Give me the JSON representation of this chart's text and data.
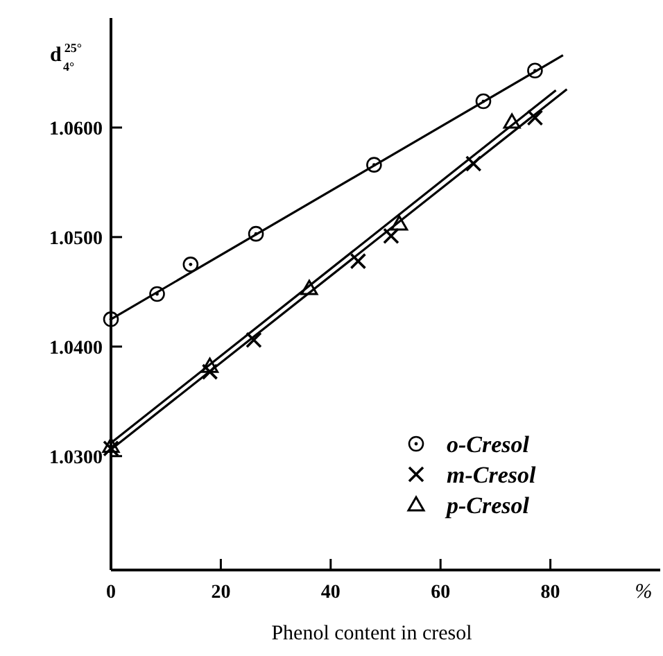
{
  "chart_data": {
    "type": "scatter",
    "xlabel": "Phenol content in cresol",
    "ylabel": "d$^{25°}$$_{4°}$",
    "annotations": [
      "%"
    ],
    "xlim": [
      0,
      100
    ],
    "ylim": [
      1.0196,
      1.07
    ],
    "xticks": [
      0,
      20,
      40,
      60,
      80
    ],
    "yticks": [
      {
        "value": 1.03,
        "label": "1.0300"
      },
      {
        "value": 1.04,
        "label": "1.0400"
      },
      {
        "value": 1.05,
        "label": "1.0500"
      },
      {
        "value": 1.06,
        "label": "1.0600"
      }
    ],
    "grid": false,
    "legend": "right",
    "series": [
      {
        "name": "o-Cresol",
        "color": "#000000",
        "marker": "circle",
        "x": [
          0,
          8.4,
          14.5,
          26.4,
          47.9,
          67.8,
          77.2
        ],
        "values": [
          1.0425,
          1.0448,
          1.0475,
          1.0503,
          1.0566,
          1.0624,
          1.0652
        ]
      },
      {
        "name": "m-Cresol",
        "color": "#000000",
        "marker": "cross",
        "x": [
          0,
          18,
          26,
          45,
          51,
          66,
          77.2
        ],
        "values": [
          1.0307,
          1.0377,
          1.0406,
          1.0478,
          1.0501,
          1.0567,
          1.0609
        ]
      },
      {
        "name": "p-Cresol",
        "color": "#000000",
        "marker": "triangle",
        "x": [
          0,
          18,
          36.1,
          52.5,
          73
        ],
        "values": [
          1.0309,
          1.0382,
          1.0453,
          1.0512,
          1.0605
        ]
      },
      {
        "type": "line",
        "color": "#000000",
        "x": [
          0,
          82.3
        ],
        "values": [
          1.0425,
          1.0666
        ]
      },
      {
        "type": "line",
        "color": "#000000",
        "x": [
          0,
          81
        ],
        "values": [
          1.0312,
          1.0634
        ]
      },
      {
        "type": "line",
        "color": "#000000",
        "x": [
          0,
          83
        ],
        "values": [
          1.0306,
          1.0635
        ]
      }
    ]
  }
}
